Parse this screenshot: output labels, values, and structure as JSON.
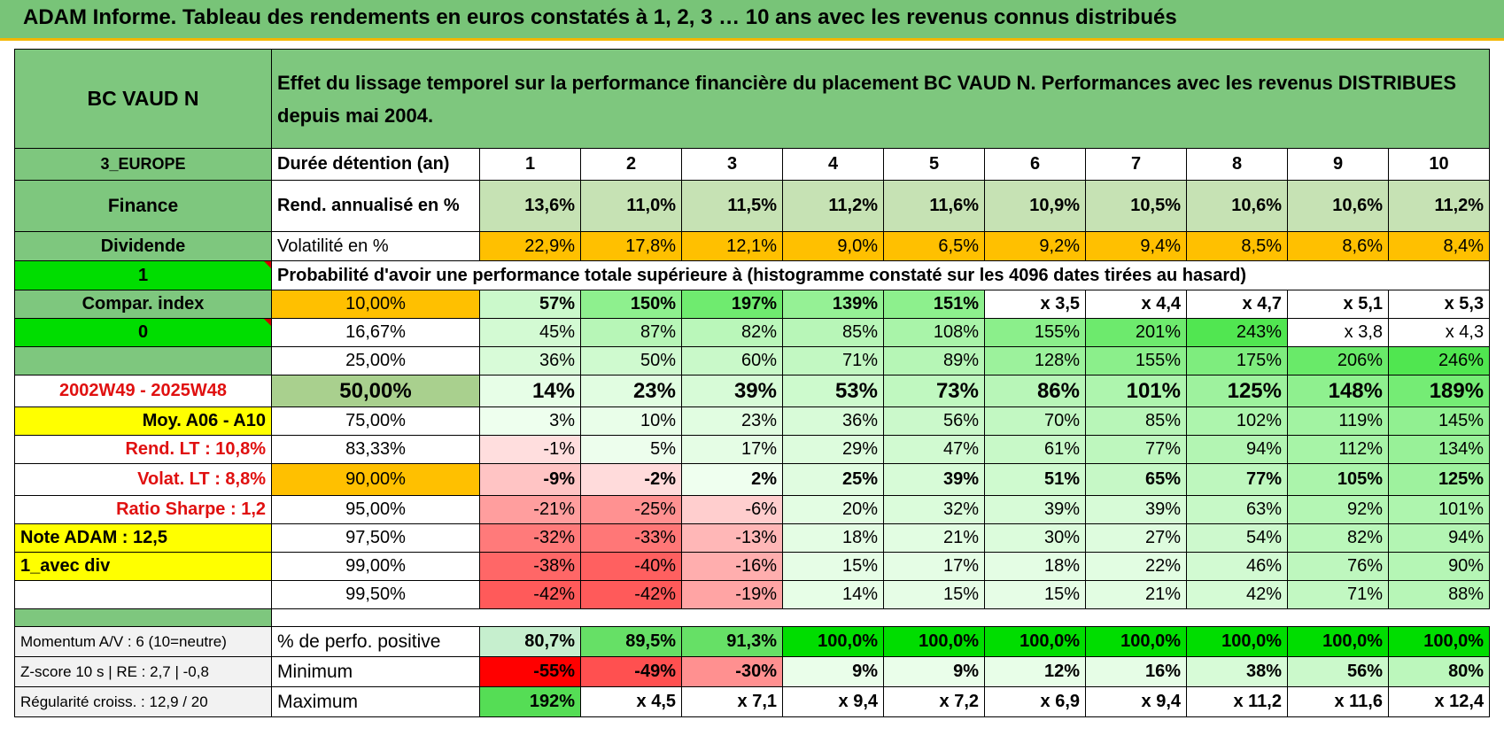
{
  "title": "ADAM Informe. Tableau des rendements en euros constatés à 1, 2, 3 … 10 ans avec les revenus connus distribués",
  "fund": "BC VAUD N",
  "header_text": "Effet du lissage temporel sur la performance financière du placement BC VAUD N. Performances avec les revenus DISTRIBUES depuis mai 2004.",
  "side": {
    "region": "3_EUROPE",
    "sector": "Finance",
    "type": "Dividende",
    "flag1": "1",
    "compar": "Compar. index",
    "flag0": "0",
    "period": "2002W49 - 2025W48",
    "moy": "Moy. A06 - A10",
    "rend_lt": "Rend. LT :    10,8%",
    "volat_lt": "Volat. LT :    8,8%",
    "sharpe": "Ratio Sharpe :     1,2",
    "note": "Note ADAM : 12,5",
    "avec_div": "1_avec div",
    "momentum": "Momentum A/V : 6 (10=neutre)",
    "zscore": "Z-score 10 s | RE : 2,7 | -0,8",
    "regularite": "Régularité croiss. : 12,9 / 20"
  },
  "row_labels": {
    "duree": "Durée détention (an)",
    "rend": "Rend. annualisé en %",
    "vol": "Volatilité en %",
    "prob": "Probabilité d'avoir une performance totale supérieure à (histogramme constaté sur les 4096 dates tirées au hasard)",
    "pct_pos": "% de perfo. positive",
    "min": "Minimum",
    "max": "Maximum"
  },
  "years": [
    "1",
    "2",
    "3",
    "4",
    "5",
    "6",
    "7",
    "8",
    "9",
    "10"
  ],
  "rend": [
    "13,6%",
    "11,0%",
    "11,5%",
    "11,2%",
    "11,6%",
    "10,9%",
    "10,5%",
    "10,6%",
    "10,6%",
    "11,2%"
  ],
  "vol": [
    "22,9%",
    "17,8%",
    "12,1%",
    "9,0%",
    "6,5%",
    "9,2%",
    "9,4%",
    "8,5%",
    "8,6%",
    "8,4%"
  ],
  "prob_rows": [
    {
      "p": "10,00%",
      "v": [
        "57%",
        "150%",
        "197%",
        "139%",
        "151%",
        "x 3,5",
        "x 4,4",
        "x 4,7",
        "x 5,1",
        "x 5,3"
      ]
    },
    {
      "p": "16,67%",
      "v": [
        "45%",
        "87%",
        "82%",
        "85%",
        "108%",
        "155%",
        "201%",
        "243%",
        "x 3,8",
        "x 4,3"
      ]
    },
    {
      "p": "25,00%",
      "v": [
        "36%",
        "50%",
        "60%",
        "71%",
        "89%",
        "128%",
        "155%",
        "175%",
        "206%",
        "246%"
      ]
    },
    {
      "p": "50,00%",
      "v": [
        "14%",
        "23%",
        "39%",
        "53%",
        "73%",
        "86%",
        "101%",
        "125%",
        "148%",
        "189%"
      ]
    },
    {
      "p": "75,00%",
      "v": [
        "3%",
        "10%",
        "23%",
        "36%",
        "56%",
        "70%",
        "85%",
        "102%",
        "119%",
        "145%"
      ]
    },
    {
      "p": "83,33%",
      "v": [
        "-1%",
        "5%",
        "17%",
        "29%",
        "47%",
        "61%",
        "77%",
        "94%",
        "112%",
        "134%"
      ]
    },
    {
      "p": "90,00%",
      "v": [
        "-9%",
        "-2%",
        "2%",
        "25%",
        "39%",
        "51%",
        "65%",
        "77%",
        "105%",
        "125%"
      ]
    },
    {
      "p": "95,00%",
      "v": [
        "-21%",
        "-25%",
        "-6%",
        "20%",
        "32%",
        "39%",
        "39%",
        "63%",
        "92%",
        "101%"
      ]
    },
    {
      "p": "97,50%",
      "v": [
        "-32%",
        "-33%",
        "-13%",
        "18%",
        "21%",
        "30%",
        "27%",
        "54%",
        "82%",
        "94%"
      ]
    },
    {
      "p": "99,00%",
      "v": [
        "-38%",
        "-40%",
        "-16%",
        "15%",
        "17%",
        "18%",
        "22%",
        "46%",
        "76%",
        "90%"
      ]
    },
    {
      "p": "99,50%",
      "v": [
        "-42%",
        "-42%",
        "-19%",
        "14%",
        "15%",
        "15%",
        "21%",
        "42%",
        "71%",
        "88%"
      ]
    }
  ],
  "pct_pos": [
    "80,7%",
    "89,5%",
    "91,3%",
    "100,0%",
    "100,0%",
    "100,0%",
    "100,0%",
    "100,0%",
    "100,0%",
    "100,0%"
  ],
  "min": [
    "-55%",
    "-49%",
    "-30%",
    "9%",
    "9%",
    "12%",
    "16%",
    "38%",
    "56%",
    "80%"
  ],
  "max": [
    "192%",
    "x 4,5",
    "x 7,1",
    "x 9,4",
    "x 7,2",
    "x 6,9",
    "x 9,4",
    "x 11,2",
    "x 11,6",
    "x 12,4"
  ],
  "colors": {
    "green_header": "#7ec77e",
    "bright_green": "#00dd00",
    "yellow": "#ffff00",
    "orange": "#ffc000",
    "red_text": "#e01010"
  }
}
